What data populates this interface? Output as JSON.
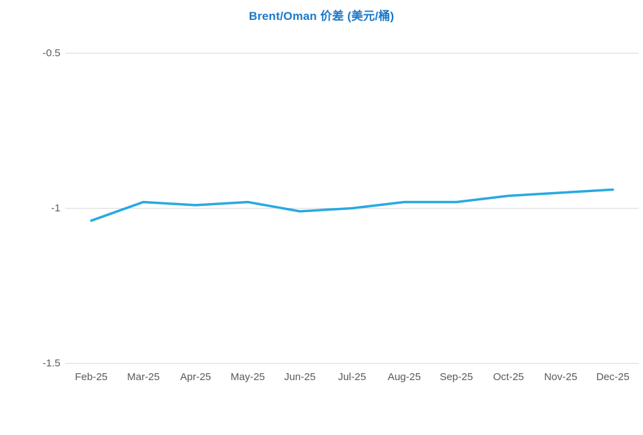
{
  "page": {
    "background_color": "#FFFFFF"
  },
  "chart_data": {
    "type": "line",
    "title": "Brent/Oman 价差 (美元/桶)",
    "title_color": "#1B79C8",
    "categories": [
      "Feb-25",
      "Mar-25",
      "Apr-25",
      "May-25",
      "Jun-25",
      "Jul-25",
      "Aug-25",
      "Sep-25",
      "Oct-25",
      "Nov-25",
      "Dec-25"
    ],
    "values": [
      -1.04,
      -0.98,
      -0.99,
      -0.98,
      -1.01,
      -1.0,
      -0.98,
      -0.98,
      -0.96,
      -0.95,
      -0.94
    ],
    "xlabel": "",
    "ylabel": "",
    "ylim": [
      -1.5,
      -0.5
    ],
    "yticks": [
      {
        "label": "-0.5",
        "value": -0.5
      },
      {
        "label": "-1",
        "value": -1.0
      },
      {
        "label": "-1.5",
        "value": -1.5
      }
    ],
    "grid": "horizontal-only",
    "legend_position": "none",
    "line_color": "#29A9E1",
    "gridline_color": "#D9D9D9",
    "axis_label_color": "#595959",
    "markers": "none"
  }
}
